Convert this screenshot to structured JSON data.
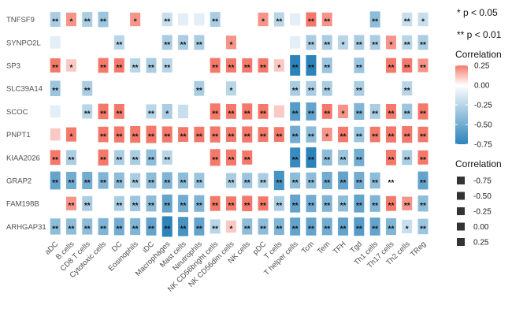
{
  "chart_data": {
    "type": "heatmap",
    "rows": [
      "TNFSF9",
      "SYNPO2L",
      "SP3",
      "SLC39A14",
      "SCOC",
      "PNPT1",
      "KIAA2026",
      "GRAP2",
      "FAM198B",
      "ARHGAP31"
    ],
    "columns": [
      "aDC",
      "B cells",
      "CD8 T cells",
      "Cytotoxic cells",
      "DC",
      "Eosinophils",
      "iDC",
      "Macrophages",
      "Mast cells",
      "Neutrophils",
      "NK CD56bright cells",
      "NK CD56dim cells",
      "NK cells",
      "pDC",
      "T cells",
      "T helper cells",
      "Tcm",
      "Tem",
      "TFH",
      "Tgd",
      "Th1 cells",
      "Th17 cells",
      "Th2 cells",
      "TReg"
    ],
    "values": [
      [
        -0.3,
        0.2,
        -0.3,
        -0.35,
        0.0,
        0.2,
        0.0,
        -0.2,
        -0.1,
        -0.1,
        -0.3,
        0.0,
        0.0,
        0.2,
        -0.25,
        -0.1,
        0.25,
        0.2,
        0.0,
        0.0,
        -0.4,
        0.0,
        -0.2,
        -0.2
      ],
      [
        -0.1,
        0.0,
        0.0,
        0.0,
        -0.25,
        0.0,
        0.0,
        -0.3,
        -0.3,
        -0.3,
        0.0,
        0.2,
        0.0,
        0.0,
        0.0,
        -0.1,
        -0.3,
        -0.3,
        -0.25,
        -0.3,
        -0.3,
        0.2,
        -0.25,
        -0.3
      ],
      [
        0.25,
        0.1,
        0.0,
        0.3,
        0.25,
        -0.25,
        -0.3,
        -0.25,
        0.0,
        0.0,
        0.3,
        0.25,
        0.25,
        0.25,
        0.1,
        -0.75,
        -0.8,
        -0.35,
        0.0,
        -0.35,
        0.0,
        0.3,
        0.25,
        0.2
      ],
      [
        -0.35,
        0.0,
        -0.3,
        0.0,
        0.0,
        0.0,
        0.0,
        0.0,
        0.0,
        -0.3,
        0.0,
        -0.25,
        0.0,
        0.0,
        0.0,
        -0.3,
        -0.3,
        -0.3,
        0.0,
        -0.3,
        0.0,
        0.0,
        -0.25,
        0.0
      ],
      [
        -0.1,
        0.0,
        -0.25,
        0.35,
        0.3,
        0.0,
        -0.25,
        -0.3,
        -0.2,
        0.0,
        0.4,
        0.3,
        0.4,
        0.3,
        0.1,
        -0.6,
        -0.55,
        0.3,
        0.2,
        -0.45,
        -0.3,
        0.3,
        -0.35,
        0.4
      ],
      [
        0.1,
        0.25,
        0.0,
        0.35,
        0.4,
        0.45,
        0.5,
        0.4,
        0.3,
        0.35,
        0.4,
        0.3,
        0.4,
        0.3,
        0.3,
        -0.5,
        -0.4,
        0.2,
        0.35,
        -0.35,
        0.35,
        0.4,
        0.45,
        0.35
      ],
      [
        0.3,
        -0.3,
        0.0,
        0.4,
        -0.3,
        -0.3,
        -0.4,
        -0.25,
        0.0,
        0.0,
        0.45,
        0.4,
        0.25,
        0.0,
        0.0,
        -0.7,
        -0.95,
        -0.4,
        -0.35,
        -0.5,
        0.0,
        0.35,
        -0.3,
        0.25
      ],
      [
        -0.55,
        -0.5,
        -0.5,
        -0.45,
        -0.4,
        -0.3,
        -0.4,
        -0.45,
        -0.4,
        -0.35,
        0.0,
        -0.3,
        -0.35,
        -0.3,
        -0.65,
        -0.4,
        -0.4,
        -0.5,
        -0.55,
        -0.5,
        -0.4,
        0.0,
        0.0,
        -0.55
      ],
      [
        0.0,
        0.2,
        -0.3,
        0.0,
        -0.3,
        -0.35,
        -0.4,
        -0.55,
        -0.5,
        -0.45,
        0.3,
        0.25,
        0.35,
        0.25,
        -0.3,
        -0.55,
        -0.5,
        -0.45,
        -0.4,
        -0.55,
        -0.45,
        0.3,
        0.2,
        -0.4
      ],
      [
        -0.4,
        -0.4,
        -0.4,
        -0.45,
        -0.5,
        -0.45,
        -0.55,
        -0.8,
        -0.65,
        -0.55,
        -0.25,
        0.1,
        -0.4,
        -0.4,
        -0.45,
        -0.55,
        -0.55,
        -0.5,
        -0.55,
        -0.6,
        -0.55,
        -0.45,
        -0.2,
        -0.35
      ]
    ],
    "significance": [
      [
        "**",
        "*",
        "**",
        "**",
        "",
        "*",
        "",
        "**",
        "",
        "",
        "**",
        "",
        "",
        "*",
        "**",
        "",
        "**",
        "**",
        "",
        "",
        "**",
        "",
        "**",
        "*"
      ],
      [
        "",
        "",
        "",
        "",
        "**",
        "",
        "",
        "**",
        "**",
        "**",
        "",
        "*",
        "",
        "",
        "",
        "",
        "**",
        "**",
        "*",
        "**",
        "**",
        "*",
        "**",
        "**"
      ],
      [
        "**",
        "*",
        "",
        "**",
        "**",
        "**",
        "**",
        "**",
        "",
        "",
        "**",
        "**",
        "**",
        "**",
        "*",
        "**",
        "**",
        "**",
        "",
        "**",
        "",
        "**",
        "**",
        "**"
      ],
      [
        "**",
        "",
        "**",
        "",
        "",
        "",
        "",
        "",
        "",
        "**",
        "",
        "*",
        "",
        "",
        "",
        "**",
        "**",
        "**",
        "",
        "**",
        "",
        "",
        "**",
        ""
      ],
      [
        "",
        "",
        "**",
        "**",
        "**",
        "",
        "**",
        "*",
        "",
        "",
        "**",
        "**",
        "**",
        "**",
        "",
        "**",
        "**",
        "**",
        "*",
        "**",
        "**",
        "**",
        "**",
        "**"
      ],
      [
        "",
        "*",
        "",
        "**",
        "**",
        "**",
        "**",
        "**",
        "**",
        "**",
        "**",
        "**",
        "**",
        "**",
        "**",
        "**",
        "**",
        "*",
        "**",
        "**",
        "**",
        "**",
        "**",
        "**"
      ],
      [
        "**",
        "**",
        "",
        "**",
        "**",
        "**",
        "**",
        "**",
        "",
        "",
        "**",
        "**",
        "**",
        "",
        "",
        "**",
        "**",
        "**",
        "**",
        "**",
        "",
        "**",
        "**",
        "**"
      ],
      [
        "**",
        "**",
        "**",
        "**",
        "**",
        "**",
        "**",
        "**",
        "**",
        "**",
        "",
        "**",
        "**",
        "**",
        "**",
        "**",
        "**",
        "**",
        "**",
        "**",
        "**",
        "**",
        "",
        "**"
      ],
      [
        "",
        "**",
        "**",
        "",
        "**",
        "**",
        "**",
        "**",
        "**",
        "**",
        "**",
        "**",
        "**",
        "**",
        "**",
        "**",
        "**",
        "**",
        "**",
        "**",
        "**",
        "**",
        "**",
        "**"
      ],
      [
        "**",
        "**",
        "**",
        "**",
        "**",
        "**",
        "**",
        "**",
        "**",
        "**",
        "**",
        "*",
        "**",
        "**",
        "**",
        "**",
        "**",
        "**",
        "**",
        "**",
        "**",
        "**",
        "*",
        "**"
      ]
    ],
    "color_scale": {
      "low": "#2b83ba",
      "mid": "#ffffff",
      "high": "#f4796b",
      "domain": [
        -0.75,
        0.25
      ]
    },
    "legend_color": {
      "title": "Correlation",
      "ticks": [
        0.25,
        0.0,
        -0.25,
        -0.5,
        -0.75
      ],
      "tick_labels": [
        "0.25",
        "0.00",
        "-0.25",
        "-0.50",
        "-0.75"
      ]
    },
    "legend_size": {
      "title": "Correlation",
      "entries": [
        "-0.75",
        "-0.50",
        "-0.25",
        "0.00",
        "0.25"
      ]
    },
    "significance_notes": [
      "* p < 0.05",
      "** p < 0.01"
    ],
    "grid": false,
    "legend_placement": "right"
  }
}
